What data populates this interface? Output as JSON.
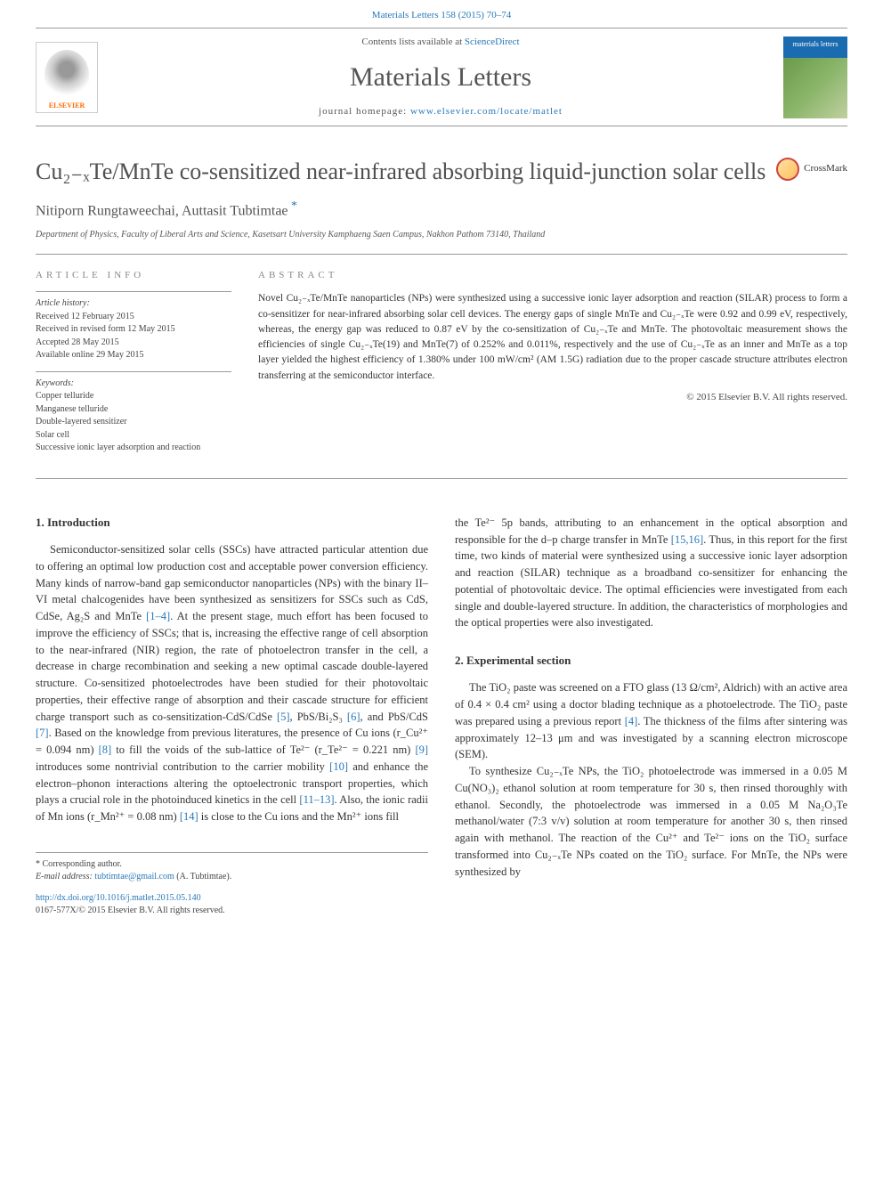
{
  "top_citation": "Materials Letters 158 (2015) 70–74",
  "header": {
    "contents_prefix": "Contents lists available at ",
    "contents_link": "ScienceDirect",
    "journal": "Materials Letters",
    "homepage_prefix": "journal homepage: ",
    "homepage_url": "www.elsevier.com/locate/matlet",
    "publisher": "ELSEVIER",
    "cover_label": "materials letters"
  },
  "title": "Cu₂₋ₓTe/MnTe co-sensitized near-infrared absorbing liquid-junction solar cells",
  "crossmark": "CrossMark",
  "authors": "Nitiporn Rungtaweechai, Auttasit Tubtimtae",
  "affiliation": "Department of Physics, Faculty of Liberal Arts and Science, Kasetsart University Kamphaeng Saen Campus, Nakhon Pathom 73140, Thailand",
  "labels": {
    "article_info": "ARTICLE INFO",
    "abstract": "ABSTRACT",
    "history": "Article history:",
    "keywords": "Keywords:"
  },
  "history": {
    "received": "Received 12 February 2015",
    "revised": "Received in revised form 12 May 2015",
    "accepted": "Accepted 28 May 2015",
    "online": "Available online 29 May 2015"
  },
  "keywords": [
    "Copper telluride",
    "Manganese telluride",
    "Double-layered sensitizer",
    "Solar cell",
    "Successive ionic layer adsorption and reaction"
  ],
  "abstract": "Novel Cu₂₋ₓTe/MnTe nanoparticles (NPs) were synthesized using a successive ionic layer adsorption and reaction (SILAR) process to form a co-sensitizer for near-infrared absorbing solar cell devices. The energy gaps of single MnTe and Cu₂₋ₓTe were 0.92 and 0.99 eV, respectively, whereas, the energy gap was reduced to 0.87 eV by the co-sensitization of Cu₂₋ₓTe and MnTe. The photovoltaic measurement shows the efficiencies of single Cu₂₋ₓTe(19) and MnTe(7) of 0.252% and 0.011%, respectively and the use of Cu₂₋ₓTe as an inner and MnTe as a top layer yielded the highest efficiency of 1.380% under 100 mW/cm² (AM 1.5G) radiation due to the proper cascade structure attributes electron transferring at the semiconductor interface.",
  "copyright": "© 2015 Elsevier B.V. All rights reserved.",
  "sections": {
    "intro_head": "1. Introduction",
    "exp_head": "2. Experimental section"
  },
  "body": {
    "intro_p1": "Semiconductor-sensitized solar cells (SSCs) have attracted particular attention due to offering an optimal low production cost and acceptable power conversion efficiency. Many kinds of narrow-band gap semiconductor nanoparticles (NPs) with the binary II–VI metal chalcogenides have been synthesized as sensitizers for SSCs such as CdS, CdSe, Ag₂S and MnTe [1–4]. At the present stage, much effort has been focused to improve the efficiency of SSCs; that is, increasing the effective range of cell absorption to the near-infrared (NIR) region, the rate of photoelectron transfer in the cell, a decrease in charge recombination and seeking a new optimal cascade double-layered structure. Co-sensitized photoelectrodes have been studied for their photovoltaic properties, their effective range of absorption and their cascade structure for efficient charge transport such as co-sensitization-CdS/CdSe [5], PbS/Bi₂S₃ [6], and PbS/CdS [7]. Based on the knowledge from previous literatures, the presence of Cu ions (r_Cu²⁺ = 0.094 nm) [8] to fill the voids of the sub-lattice of Te²⁻ (r_Te²⁻ = 0.221 nm) [9] introduces some nontrivial contribution to the carrier mobility [10] and enhance the electron–phonon interactions altering the optoelectronic transport properties, which plays a crucial role in the photoinduced kinetics in the cell [11–13]. Also, the ionic radii of Mn ions (r_Mn²⁺ = 0.08 nm) [14] is close to the Cu ions and the Mn²⁺ ions fill",
    "intro_p2": "the Te²⁻ 5p bands, attributing to an enhancement in the optical absorption and responsible for the d–p charge transfer in MnTe [15,16]. Thus, in this report for the first time, two kinds of material were synthesized using a successive ionic layer adsorption and reaction (SILAR) technique as a broadband co-sensitizer for enhancing the potential of photovoltaic device. The optimal efficiencies were investigated from each single and double-layered structure. In addition, the characteristics of morphologies and the optical properties were also investigated.",
    "exp_p1": "The TiO₂ paste was screened on a FTO glass (13 Ω/cm², Aldrich) with an active area of 0.4 × 0.4 cm² using a doctor blading technique as a photoelectrode. The TiO₂ paste was prepared using a previous report [4]. The thickness of the films after sintering was approximately 12–13 μm and was investigated by a scanning electron microscope (SEM).",
    "exp_p2": "To synthesize Cu₂₋ₓTe NPs, the TiO₂ photoelectrode was immersed in a 0.05 M Cu(NO₃)₂ ethanol solution at room temperature for 30 s, then rinsed thoroughly with ethanol. Secondly, the photoelectrode was immersed in a 0.05 M Na₂O₃Te methanol/water (7:3 v/v) solution at room temperature for another 30 s, then rinsed again with methanol. The reaction of the Cu²⁺ and Te²⁻ ions on the TiO₂ surface transformed into Cu₂₋ₓTe NPs coated on the TiO₂ surface. For MnTe, the NPs were synthesized by"
  },
  "footnote": {
    "corresponding": "* Corresponding author.",
    "email_label": "E-mail address: ",
    "email": "tubtimtae@gmail.com",
    "email_suffix": " (A. Tubtimtae)."
  },
  "doi": {
    "url": "http://dx.doi.org/10.1016/j.matlet.2015.05.140",
    "issn_line": "0167-577X/© 2015 Elsevier B.V. All rights reserved."
  },
  "colors": {
    "link": "#2878b8",
    "rule": "#999999",
    "elsevier": "#ff6b00",
    "cover_blue": "#1a6bb0"
  }
}
